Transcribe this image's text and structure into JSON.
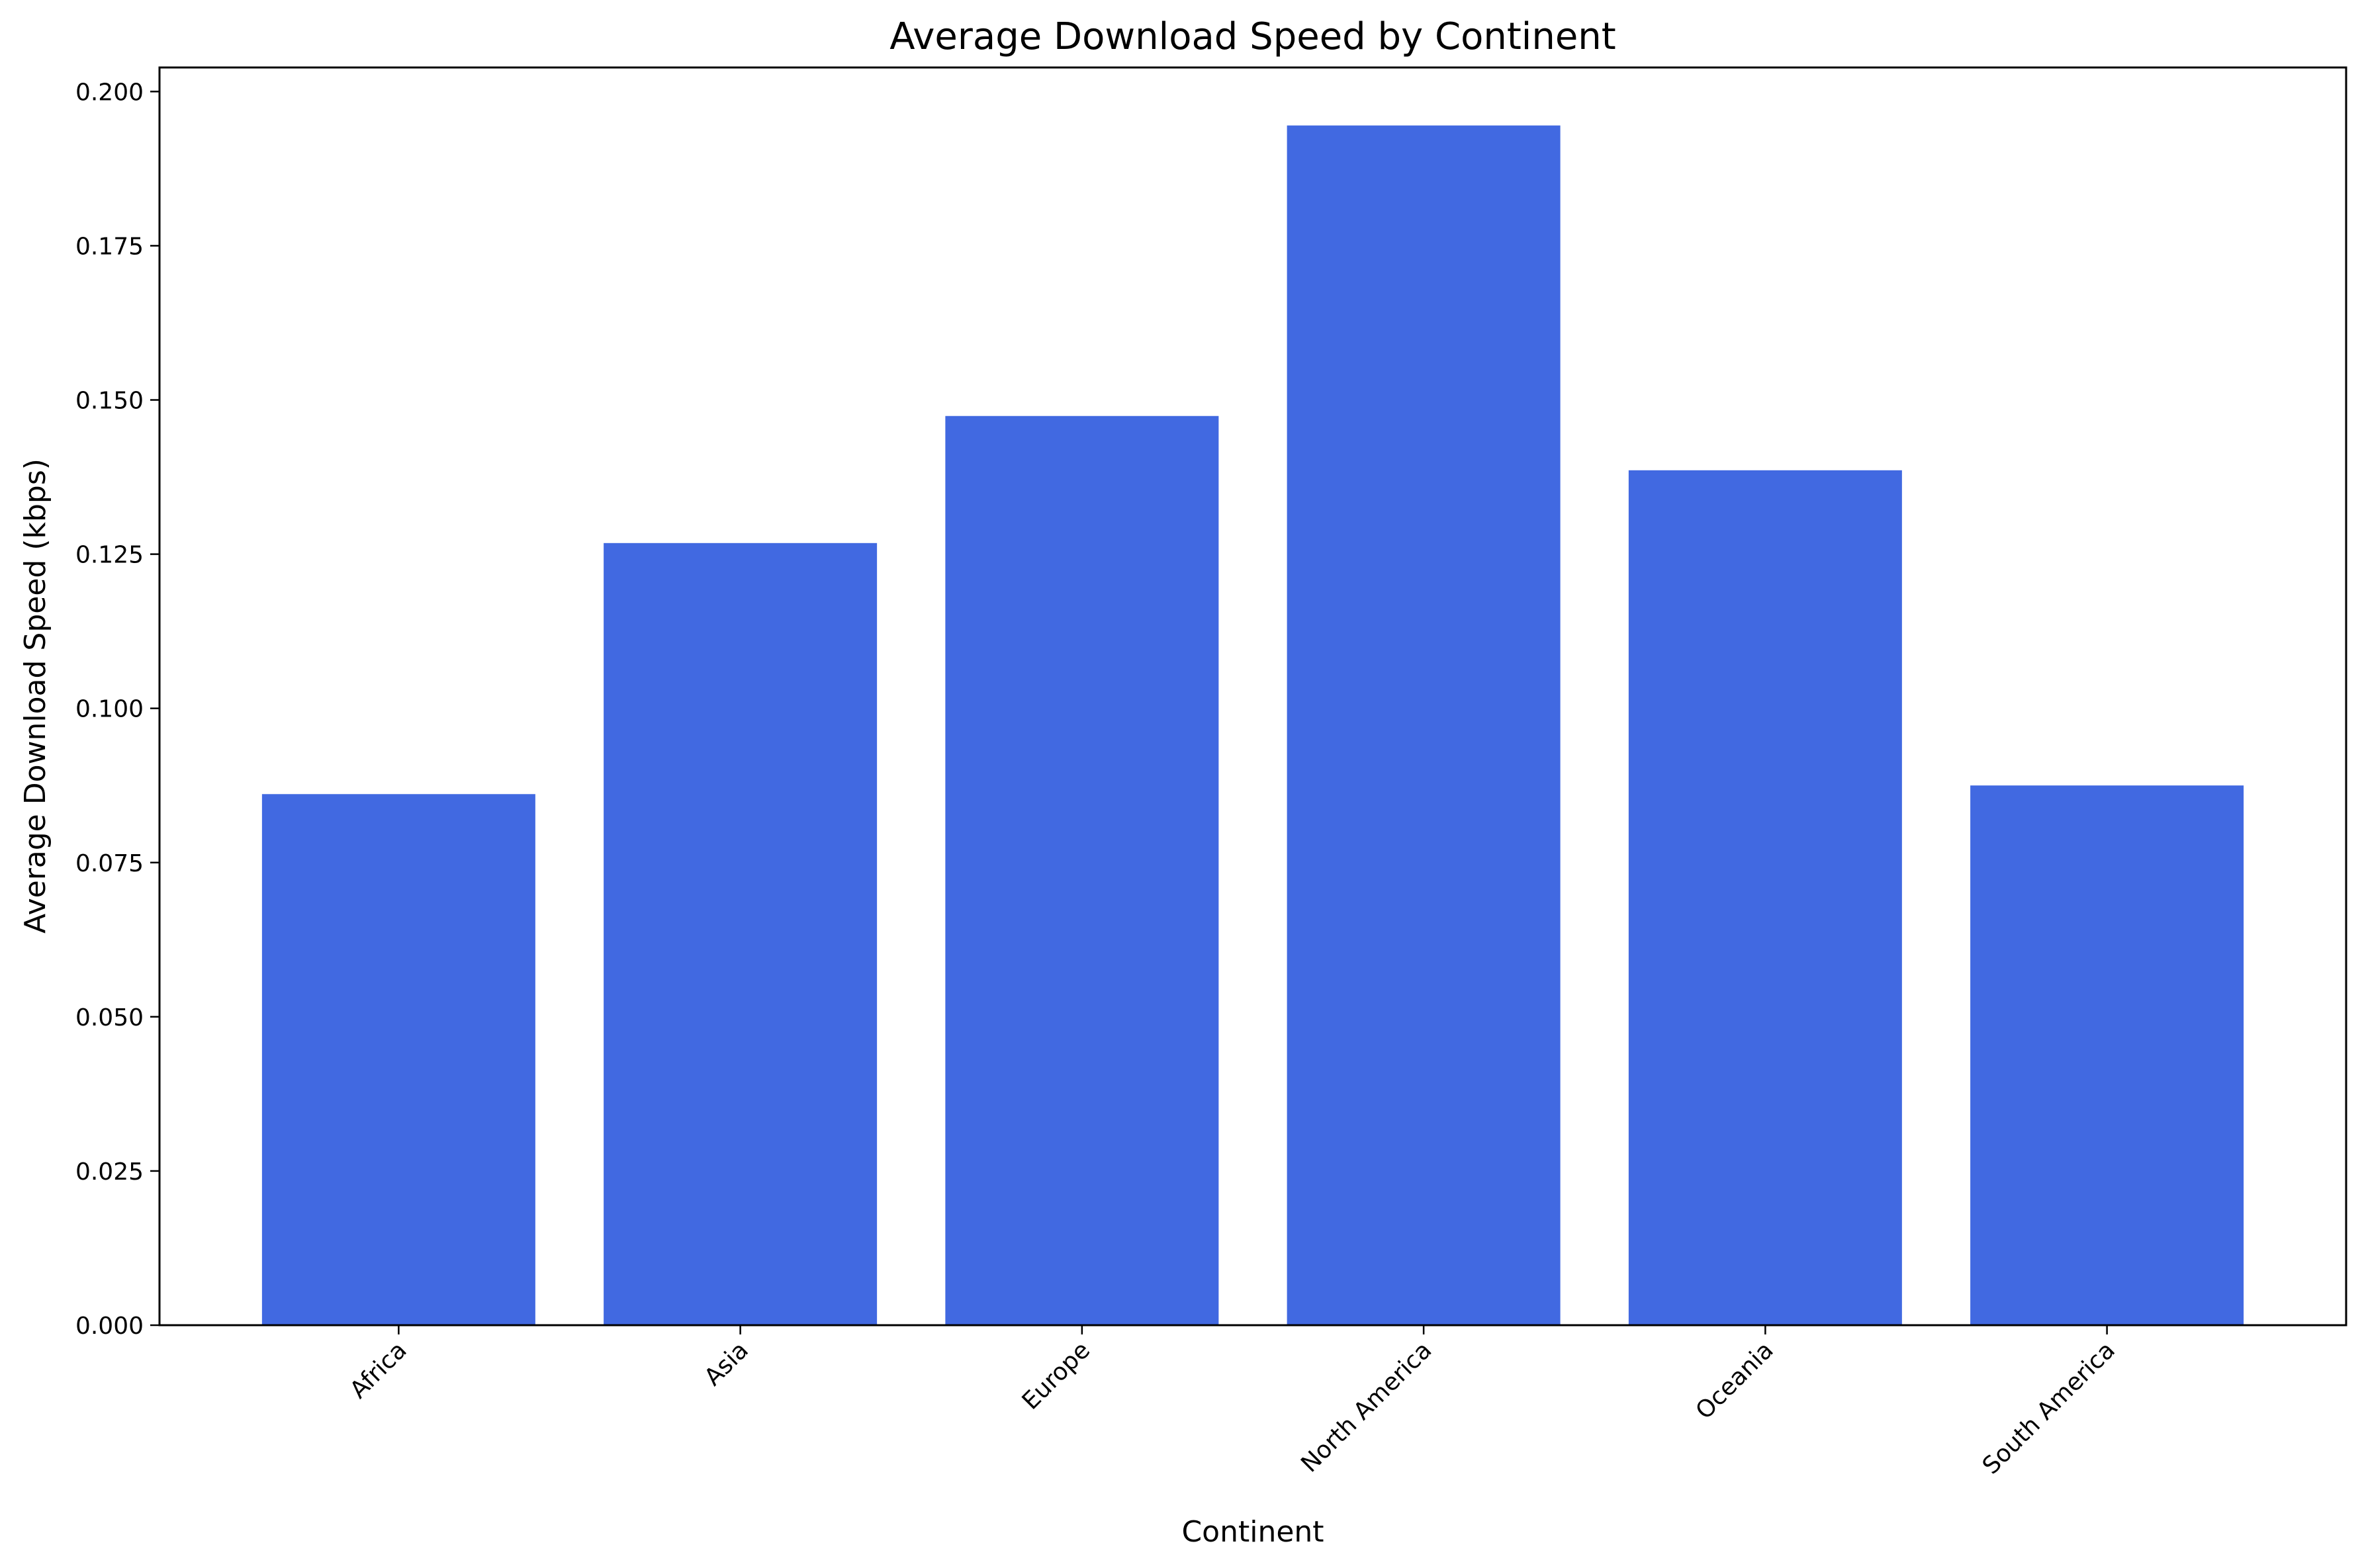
{
  "chart_data": {
    "type": "bar",
    "title": "Average Download Speed by Continent",
    "xlabel": "Continent",
    "ylabel": "Average Download Speed (kbps)",
    "categories": [
      "Africa",
      "Asia",
      "Europe",
      "North America",
      "Oceania",
      "South America"
    ],
    "values": [
      0.0861,
      0.1268,
      0.1474,
      0.1945,
      0.1386,
      0.0875
    ],
    "ylim": [
      0,
      0.2039
    ],
    "yticks": [
      "0.000",
      "0.025",
      "0.050",
      "0.075",
      "0.100",
      "0.125",
      "0.150",
      "0.175",
      "0.200"
    ],
    "grid": false,
    "bar_color": "#4169E1"
  }
}
